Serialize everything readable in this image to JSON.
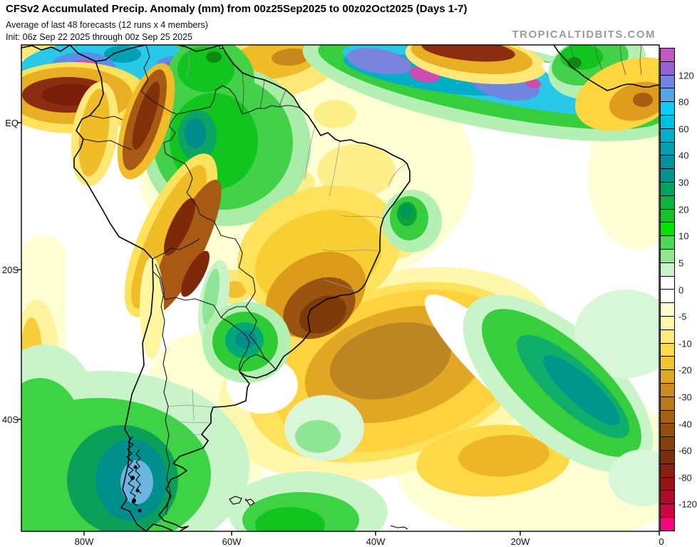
{
  "header": {
    "title": "CFSv2 Accumulated Precip. Anomaly (mm) from 00z25Sep2025 to 00z02Oct2025 (Days 1-7)",
    "subtitle": "Average of last 48 forecasts (12 runs x 4 members)",
    "init_line": "Init: 06z Sep 22 2025 through 00z Sep 25 2025",
    "watermark": "TROPICALTIDBITS.COM"
  },
  "map": {
    "y_axis_labels": [
      "EQ",
      "20S",
      "40S"
    ],
    "x_axis_labels": [
      "80W",
      "60W",
      "40W",
      "20W",
      "0"
    ]
  },
  "colorbar": {
    "description": "Accumulated precipitation anomaly (mm), positive = green/blue/purple, negative = yellow/brown/red",
    "segments": [
      "#c457c4",
      "#9463d6",
      "#7583e2",
      "#57a4ea",
      "#0ccdf4",
      "#00c0e2",
      "#00afcc",
      "#00a2b2",
      "#00939d",
      "#009390",
      "#00a467",
      "#0cb43e",
      "#16c226",
      "#00e400",
      "#49d953",
      "#92e792",
      "#c8f3c8",
      "#ffffff",
      "#ffffff",
      "#fffcd0",
      "#fff7a8",
      "#ffe87c",
      "#ffd94a",
      "#f2c232",
      "#e2a825",
      "#cd8d1c",
      "#b97917",
      "#a66312",
      "#95500e",
      "#86400a",
      "#7c2f09",
      "#8c1f10",
      "#9c1117",
      "#b00b28",
      "#ce0445",
      "#f2067e"
    ],
    "labels": [
      {
        "text": "120",
        "boundary": 2
      },
      {
        "text": "80",
        "boundary": 4
      },
      {
        "text": "60",
        "boundary": 6
      },
      {
        "text": "40",
        "boundary": 8
      },
      {
        "text": "30",
        "boundary": 10
      },
      {
        "text": "20",
        "boundary": 12
      },
      {
        "text": "10",
        "boundary": 14
      },
      {
        "text": "5",
        "boundary": 16
      },
      {
        "text": "0",
        "boundary": 18
      },
      {
        "text": "-5",
        "boundary": 20
      },
      {
        "text": "-10",
        "boundary": 22
      },
      {
        "text": "-20",
        "boundary": 24
      },
      {
        "text": "-30",
        "boundary": 26
      },
      {
        "text": "-40",
        "boundary": 28
      },
      {
        "text": "-60",
        "boundary": 30
      },
      {
        "text": "-80",
        "boundary": 32
      },
      {
        "text": "-120",
        "boundary": 34
      }
    ]
  }
}
